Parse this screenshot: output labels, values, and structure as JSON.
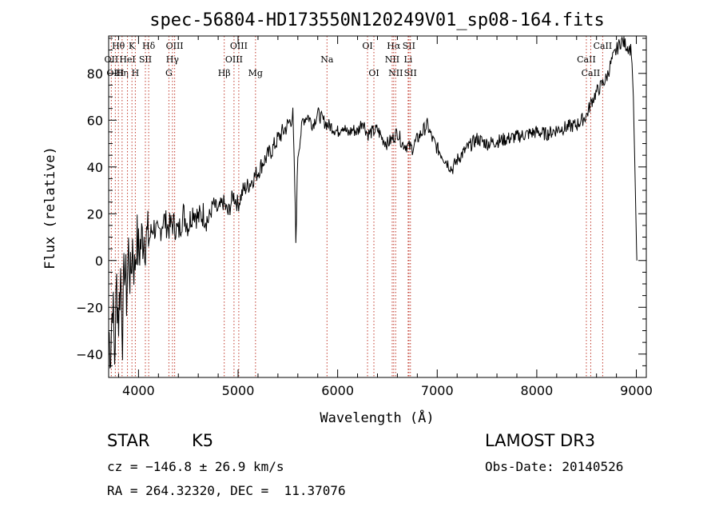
{
  "chart_data": {
    "type": "line",
    "title": "spec-56804-HD173550N120249V01_sp08-164.fits",
    "xlabel": "Wavelength (Å)",
    "ylabel": "Flux (relative)",
    "xlim": [
      3700,
      9100
    ],
    "ylim": [
      -50,
      96
    ],
    "xticks": [
      4000,
      5000,
      6000,
      7000,
      8000,
      9000
    ],
    "yticks": [
      -40,
      -20,
      0,
      20,
      40,
      60,
      80
    ],
    "grid": false,
    "series": [
      {
        "name": "flux",
        "x": [
          3700,
          3720,
          3740,
          3760,
          3780,
          3800,
          3820,
          3840,
          3860,
          3880,
          3900,
          3920,
          3940,
          3960,
          3980,
          4000,
          4050,
          4100,
          4150,
          4200,
          4250,
          4300,
          4350,
          4400,
          4450,
          4500,
          4550,
          4600,
          4650,
          4700,
          4750,
          4800,
          4850,
          4900,
          4950,
          5000,
          5050,
          5100,
          5150,
          5200,
          5250,
          5300,
          5350,
          5400,
          5450,
          5500,
          5550,
          5570,
          5580,
          5600,
          5650,
          5700,
          5750,
          5800,
          5850,
          5900,
          5950,
          6000,
          6050,
          6100,
          6150,
          6200,
          6250,
          6300,
          6350,
          6400,
          6450,
          6500,
          6550,
          6600,
          6650,
          6700,
          6750,
          6800,
          6850,
          6900,
          6950,
          7000,
          7050,
          7100,
          7150,
          7200,
          7300,
          7400,
          7500,
          7600,
          7700,
          7800,
          7900,
          8000,
          8100,
          8200,
          8300,
          8400,
          8450,
          8500,
          8550,
          8600,
          8650,
          8700,
          8750,
          8800,
          8850,
          8900,
          8950,
          8970,
          8990,
          9000,
          9005
        ],
        "y": [
          -30,
          -38,
          -15,
          -42,
          -10,
          -25,
          -5,
          -30,
          0,
          -15,
          5,
          -10,
          8,
          -5,
          10,
          3,
          12,
          8,
          15,
          10,
          18,
          14,
          16,
          12,
          20,
          15,
          22,
          18,
          20,
          17,
          24,
          21,
          25,
          20,
          28,
          24,
          30,
          32,
          35,
          38,
          42,
          45,
          48,
          52,
          55,
          58,
          62,
          30,
          8,
          45,
          60,
          62,
          58,
          63,
          60,
          58,
          57,
          55,
          58,
          54,
          56,
          55,
          60,
          54,
          55,
          56,
          52,
          50,
          52,
          55,
          50,
          49,
          48,
          52,
          55,
          58,
          52,
          48,
          45,
          42,
          39,
          43,
          48,
          52,
          50,
          51,
          52,
          53,
          54,
          55,
          54,
          56,
          57,
          58,
          60,
          62,
          68,
          72,
          75,
          78,
          85,
          90,
          94,
          92,
          90,
          70,
          30,
          10,
          0
        ]
      }
    ],
    "spectral_lines": [
      {
        "label": "Hθ",
        "wavelength": 3798,
        "row": 1
      },
      {
        "label": "OII",
        "wavelength": 3727,
        "row": 2
      },
      {
        "label": "OIII",
        "wavelength": 3767,
        "row": 3
      },
      {
        "label": "Hη",
        "wavelength": 3835,
        "row": 3
      },
      {
        "label": "K",
        "wavelength": 3934,
        "row": 1
      },
      {
        "label": "HeI",
        "wavelength": 3889,
        "row": 2
      },
      {
        "label": "H",
        "wavelength": 3968,
        "row": 3
      },
      {
        "label": "Hδ",
        "wavelength": 4102,
        "row": 1
      },
      {
        "label": "SII",
        "wavelength": 4069,
        "row": 2
      },
      {
        "label": "OIII",
        "wavelength": 4363,
        "row": 1
      },
      {
        "label": "Hγ",
        "wavelength": 4341,
        "row": 2
      },
      {
        "label": "G",
        "wavelength": 4305,
        "row": 3
      },
      {
        "label": "OIII",
        "wavelength": 5007,
        "row": 1
      },
      {
        "label": "OIII",
        "wavelength": 4959,
        "row": 2
      },
      {
        "label": "Hβ",
        "wavelength": 4861,
        "row": 3
      },
      {
        "label": "Mg",
        "wavelength": 5175,
        "row": 3
      },
      {
        "label": "Na",
        "wavelength": 5893,
        "row": 2
      },
      {
        "label": "OI",
        "wavelength": 6300,
        "row": 1
      },
      {
        "label": "OI",
        "wavelength": 6364,
        "row": 3
      },
      {
        "label": "Hα",
        "wavelength": 6563,
        "row": 1
      },
      {
        "label": "SII",
        "wavelength": 6716,
        "row": 1
      },
      {
        "label": "NII",
        "wavelength": 6548,
        "row": 2
      },
      {
        "label": "Li",
        "wavelength": 6708,
        "row": 2
      },
      {
        "label": "NII",
        "wavelength": 6583,
        "row": 3
      },
      {
        "label": "SII",
        "wavelength": 6731,
        "row": 3
      },
      {
        "label": "CaII",
        "wavelength": 8662,
        "row": 1
      },
      {
        "label": "CaII",
        "wavelength": 8498,
        "row": 2
      },
      {
        "label": "CaII",
        "wavelength": 8542,
        "row": 3
      }
    ]
  },
  "info": {
    "object_class": "STAR",
    "subclass": "K5",
    "survey": "LAMOST DR3",
    "cz": "cz = −146.8 ± 26.9 km/s",
    "obs_date": "Obs-Date: 20140526",
    "coords": "RA = 264.32320, DEC =  11.37076"
  }
}
